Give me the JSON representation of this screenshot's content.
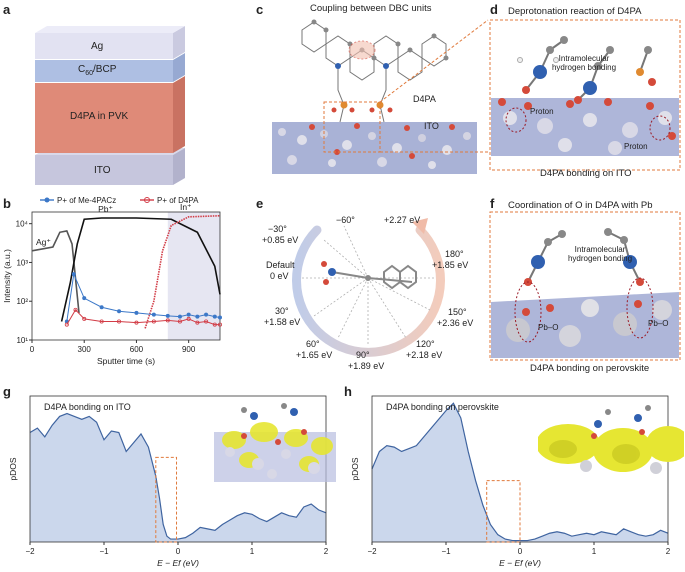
{
  "panels": {
    "a": {
      "letter": "a",
      "layers": [
        "Ag",
        "C60/BCP",
        "D4PA in PVK",
        "ITO"
      ],
      "layer_c60_main": "C",
      "layer_c60_sub": "60",
      "layer_c60_rest": "/BCP"
    },
    "c": {
      "letter": "c",
      "title": "Coupling between DBC units",
      "label_d4pa": "D4PA",
      "label_ito": "ITO"
    },
    "d": {
      "letter": "d",
      "title": "Deprotonation reaction of D4PA",
      "label_hbond": "Intramolecular hydrogen bonding",
      "label_proton_left": "Proton",
      "label_proton_right": "Proton",
      "caption": "D4PA bonding on ITO"
    },
    "e": {
      "letter": "e",
      "angles": [
        {
          "angle": "−30°",
          "energy": "+0.85 eV"
        },
        {
          "angle": "−60°",
          "energy": ""
        },
        {
          "angle": "",
          "energy": "+2.27 eV"
        },
        {
          "angle": "Default",
          "energy": "0 eV"
        },
        {
          "angle": "180°",
          "energy": "+1.85 eV"
        },
        {
          "angle": "30°",
          "energy": "+1.58 eV"
        },
        {
          "angle": "150°",
          "energy": "+2.36 eV"
        },
        {
          "angle": "60°",
          "energy": "+1.65 eV"
        },
        {
          "angle": "120°",
          "energy": "+2.18 eV"
        },
        {
          "angle": "90°",
          "energy": "+1.89 eV"
        }
      ]
    },
    "f": {
      "letter": "f",
      "title": "Coordination of O in D4PA with Pb",
      "label_hbond": "Intramolecular hydrogen bonding",
      "label_pbo_left": "Pb–O",
      "label_pbo_right": "Pb–O",
      "caption": "D4PA bonding on perovskite"
    },
    "g": {
      "letter": "g",
      "title": "D4PA bonding on ITO"
    },
    "h": {
      "letter": "h",
      "title": "D4PA bonding on perovskite"
    }
  },
  "colors": {
    "ag": "#dcdcf0",
    "c60": "#aebfe3",
    "pvk": "#e08876",
    "ito": "#c8c8e0",
    "p_me4pacz": "#3c78c8",
    "p_d4pa": "#d23c46",
    "pdos_line": "#3f64a0",
    "pdos_fill": "#c5d3ea",
    "dashed_box": "#e07a3c",
    "isosurface": "#e6e632"
  },
  "chart_data": [
    {
      "type": "scatter",
      "panel": "b",
      "title": "",
      "xlabel": "Sputter time (s)",
      "ylabel": "Intensity (a.u.)",
      "x_ticks": [
        "0",
        "300",
        "600",
        "900"
      ],
      "y_ticks": [
        "10¹",
        "10²",
        "10³",
        "10⁴"
      ],
      "yscale": "log",
      "xlim": [
        0,
        1080
      ],
      "ylim": [
        10,
        20000
      ],
      "legend": [
        "P+ of Me-4PACz",
        "P+ of D4PA"
      ],
      "legend_position": "top",
      "region_labels": [
        "Ag⁺",
        "Pb⁺",
        "In⁺"
      ],
      "series": [
        {
          "name": "Ag⁺",
          "x": [
            0,
            120,
            160,
            200,
            230,
            270
          ],
          "y": [
            2000,
            2500,
            6000,
            6500,
            3000,
            50
          ]
        },
        {
          "name": "Pb⁺",
          "x": [
            170,
            220,
            260,
            300,
            400,
            600,
            800,
            950,
            1050,
            1080
          ],
          "y": [
            30,
            300,
            3000,
            13000,
            14000,
            14000,
            13000,
            6000,
            800,
            150
          ]
        },
        {
          "name": "In⁺",
          "x": [
            650,
            700,
            750,
            800,
            900,
            1080
          ],
          "y": [
            20,
            100,
            2000,
            9000,
            15000,
            16000
          ]
        },
        {
          "name": "P+ of Me-4PACz",
          "x": [
            200,
            240,
            300,
            400,
            500,
            600,
            700,
            780,
            850,
            900,
            950,
            1000,
            1050,
            1080
          ],
          "y": [
            30,
            500,
            120,
            70,
            55,
            50,
            45,
            42,
            40,
            45,
            40,
            45,
            40,
            38
          ]
        },
        {
          "name": "P+ of D4PA",
          "x": [
            200,
            250,
            300,
            400,
            500,
            600,
            700,
            780,
            850,
            900,
            950,
            1000,
            1050,
            1080
          ],
          "y": [
            25,
            60,
            35,
            30,
            30,
            28,
            30,
            32,
            30,
            35,
            28,
            30,
            25,
            25
          ]
        }
      ]
    },
    {
      "type": "area",
      "panel": "g",
      "title": "D4PA bonding on ITO",
      "xlabel": "E − Ef (eV)",
      "ylabel": "pDOS",
      "x_ticks": [
        "−2",
        "−1",
        "0",
        "1",
        "2"
      ],
      "xlim": [
        -2,
        2
      ],
      "x": [
        -2.0,
        -1.9,
        -1.8,
        -1.7,
        -1.6,
        -1.5,
        -1.4,
        -1.3,
        -1.2,
        -1.1,
        -1.0,
        -0.9,
        -0.8,
        -0.7,
        -0.6,
        -0.5,
        -0.4,
        -0.3,
        -0.25,
        -0.2,
        -0.15,
        -0.1,
        0.0,
        0.1,
        0.2,
        0.3,
        0.4,
        0.5,
        0.6,
        0.7,
        0.8,
        0.9,
        1.0,
        1.1,
        1.2,
        1.3,
        1.4,
        1.5,
        1.6,
        1.7,
        1.8,
        1.9,
        2.0
      ],
      "y": [
        0.75,
        0.78,
        0.72,
        0.8,
        0.86,
        0.88,
        0.86,
        0.84,
        0.86,
        0.82,
        0.7,
        0.76,
        0.75,
        0.62,
        0.68,
        0.74,
        0.65,
        0.45,
        0.3,
        0.12,
        0.04,
        0.02,
        0.02,
        0.03,
        0.06,
        0.1,
        0.09,
        0.08,
        0.12,
        0.15,
        0.18,
        0.2,
        0.19,
        0.16,
        0.14,
        0.17,
        0.2,
        0.18,
        0.17,
        0.24,
        0.26,
        0.22,
        0.2
      ]
    },
    {
      "type": "area",
      "panel": "h",
      "title": "D4PA bonding on perovskite",
      "xlabel": "E − Ef (eV)",
      "ylabel": "pDOS",
      "x_ticks": [
        "−2",
        "−1",
        "0",
        "1",
        "2"
      ],
      "xlim": [
        -2,
        2
      ],
      "x": [
        -2.0,
        -1.9,
        -1.8,
        -1.7,
        -1.6,
        -1.5,
        -1.4,
        -1.3,
        -1.2,
        -1.1,
        -1.0,
        -0.9,
        -0.8,
        -0.7,
        -0.6,
        -0.5,
        -0.4,
        -0.3,
        -0.2,
        -0.1,
        0.0,
        0.1,
        0.2,
        0.3,
        0.4,
        0.5,
        0.6,
        0.7,
        0.8,
        0.9,
        1.0,
        1.1,
        1.2,
        1.3,
        1.4,
        1.5,
        1.6,
        1.7,
        1.8,
        1.9,
        2.0
      ],
      "y": [
        0.5,
        0.62,
        0.66,
        0.65,
        0.62,
        0.64,
        0.66,
        0.72,
        0.78,
        0.84,
        0.9,
        0.95,
        0.85,
        0.62,
        0.42,
        0.25,
        0.12,
        0.05,
        0.02,
        0.01,
        0.01,
        0.01,
        0.02,
        0.04,
        0.06,
        0.07,
        0.06,
        0.04,
        0.05,
        0.06,
        0.05,
        0.07,
        0.06,
        0.05,
        0.09,
        0.07,
        0.05,
        0.04,
        0.05,
        0.08,
        0.06
      ]
    }
  ]
}
